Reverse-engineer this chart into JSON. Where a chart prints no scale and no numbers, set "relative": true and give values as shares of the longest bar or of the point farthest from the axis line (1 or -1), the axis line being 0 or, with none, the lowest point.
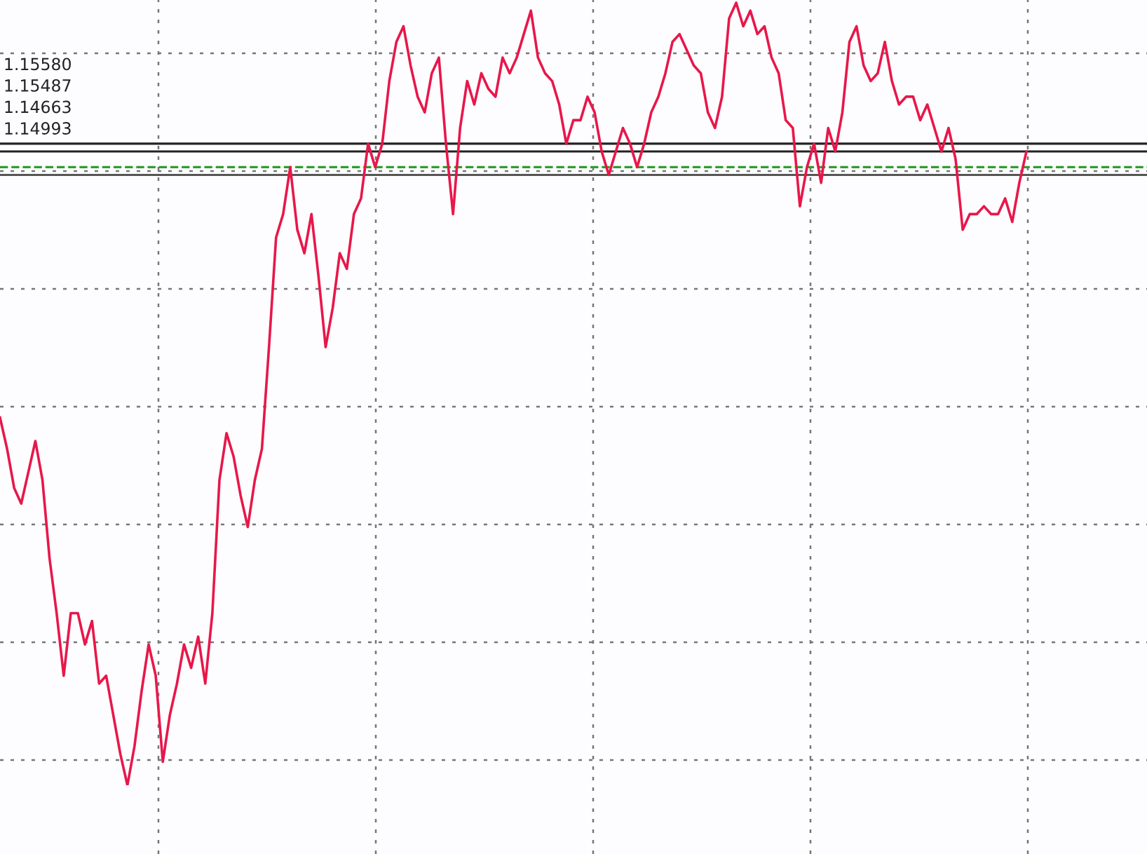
{
  "chart_data": {
    "type": "line",
    "relative": true,
    "grid": true,
    "line_style": "solid",
    "marker": "none",
    "categories": [
      null,
      null,
      null,
      null,
      null,
      null,
      null,
      null,
      null,
      null,
      null,
      null,
      null,
      null,
      null,
      null,
      null,
      null,
      null,
      null,
      null,
      null,
      null,
      null,
      null,
      null,
      null,
      null,
      null,
      null,
      null,
      null,
      null,
      null,
      null,
      null,
      null,
      null,
      null,
      null,
      null,
      null,
      null,
      null,
      null,
      null,
      null,
      null,
      null,
      null,
      null,
      null,
      null,
      null,
      null,
      null,
      null,
      null,
      null,
      null,
      null,
      null,
      null,
      null,
      null,
      null,
      null,
      null,
      null,
      null,
      null,
      null,
      null,
      null,
      null,
      null,
      null,
      null,
      null,
      null,
      null,
      null,
      null,
      null,
      null,
      null,
      null,
      null,
      null,
      null,
      null,
      null,
      null,
      null,
      null,
      null,
      null,
      null,
      null,
      null,
      null,
      null,
      null,
      null,
      null,
      null,
      null,
      null,
      null,
      null,
      null,
      null,
      null,
      null,
      null,
      null,
      null,
      null,
      null,
      null,
      null,
      null,
      null,
      null,
      null,
      null,
      null,
      null,
      null,
      null,
      null,
      null,
      null,
      null,
      null,
      null,
      null,
      null,
      null,
      null,
      null,
      null,
      null,
      null,
      null,
      null
    ],
    "series": [
      {
        "color": "#e8174a",
        "values": [
          0.47,
          0.43,
          0.38,
          0.36,
          0.4,
          0.44,
          0.39,
          0.29,
          0.22,
          0.14,
          0.22,
          0.22,
          0.18,
          0.21,
          0.13,
          0.14,
          0.09,
          0.04,
          0,
          0.05,
          0.12,
          0.18,
          0.14,
          0.03,
          0.09,
          0.13,
          0.18,
          0.15,
          0.19,
          0.13,
          0.22,
          0.39,
          0.45,
          0.42,
          0.37,
          0.33,
          0.39,
          0.43,
          0.56,
          0.7,
          0.73,
          0.79,
          0.71,
          0.68,
          0.73,
          0.65,
          0.56,
          0.61,
          0.68,
          0.66,
          0.73,
          0.75,
          0.82,
          0.79,
          0.82,
          0.9,
          0.95,
          0.97,
          0.92,
          0.88,
          0.86,
          0.91,
          0.93,
          0.82,
          0.73,
          0.84,
          0.9,
          0.87,
          0.91,
          0.89,
          0.88,
          0.93,
          0.91,
          0.93,
          0.96,
          0.99,
          0.93,
          0.91,
          0.9,
          0.87,
          0.82,
          0.85,
          0.85,
          0.88,
          0.86,
          0.81,
          0.78,
          0.81,
          0.84,
          0.82,
          0.79,
          0.82,
          0.86,
          0.88,
          0.91,
          0.95,
          0.96,
          0.94,
          0.92,
          0.91,
          0.86,
          0.84,
          0.88,
          0.98,
          1,
          0.97,
          0.99,
          0.96,
          0.97,
          0.93,
          0.91,
          0.85,
          0.84,
          0.74,
          0.79,
          0.82,
          0.77,
          0.84,
          0.81,
          0.86,
          0.95,
          0.97,
          0.92,
          0.9,
          0.91,
          0.95,
          0.9,
          0.87,
          0.88,
          0.88,
          0.85,
          0.87,
          0.84,
          0.81,
          0.84,
          0.8,
          0.71,
          0.73,
          0.73,
          0.74,
          0.73,
          0.73,
          0.75,
          0.72,
          0.77,
          0.81
        ]
      }
    ],
    "ref_lines": [
      {
        "axis": "y",
        "value": 0.82,
        "color": "#222222",
        "line_style": "solid"
      },
      {
        "axis": "y",
        "value": 0.81,
        "color": "#222222",
        "line_style": "solid"
      },
      {
        "axis": "y",
        "value": 0.78,
        "color": "#555555",
        "line_style": "solid"
      },
      {
        "axis": "y",
        "value": 0.79,
        "color": "#2e9e2e",
        "line_style": "dashed"
      }
    ],
    "annotations": [
      "1.15580",
      "1.15487",
      "1.14663",
      "1.14993"
    ]
  }
}
